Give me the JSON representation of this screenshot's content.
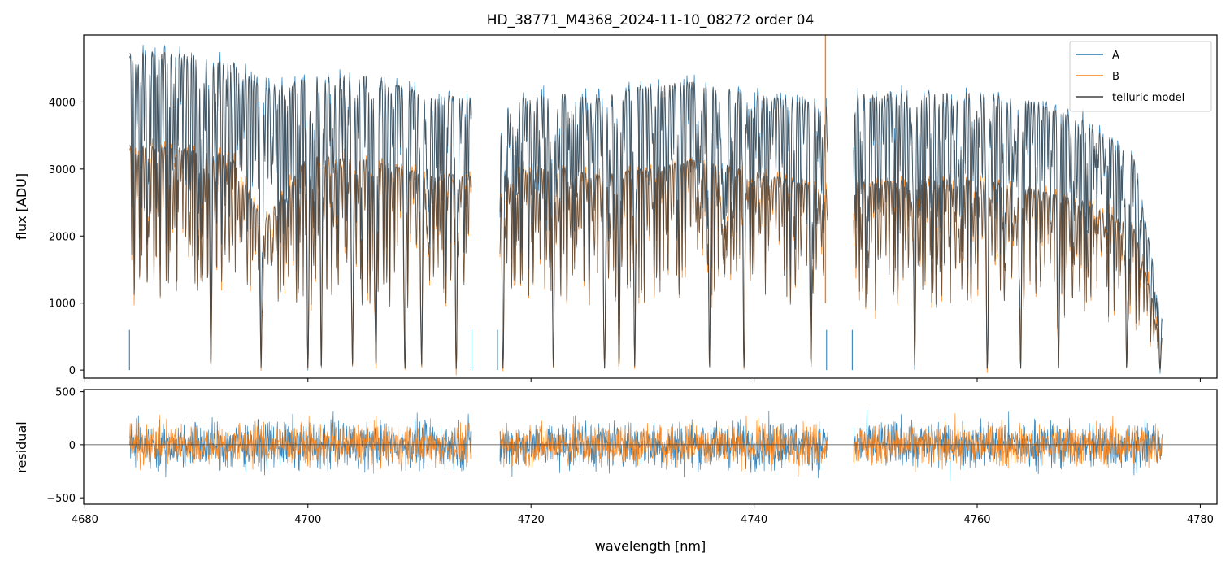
{
  "chart_data": [
    {
      "type": "line",
      "title": "HD_38771_M4368_2024-11-10_08272  order 04",
      "xlabel": "",
      "ylabel": "flux [ADU]",
      "xlim": [
        4679.9,
        4781.5
      ],
      "ylim": [
        -120,
        5000
      ],
      "yticks": [
        0,
        1000,
        2000,
        3000,
        4000
      ],
      "xticks": [
        4680,
        4700,
        4720,
        4740,
        4760,
        4780
      ],
      "xtick_labels_shown": false,
      "grid": false,
      "legend": "top-right",
      "gaps": [
        [
          4714.6,
          4717.2
        ],
        [
          4746.6,
          4748.9
        ]
      ],
      "series": [
        {
          "name": "A",
          "color": "#1f77b4",
          "continuum": [
            [
              4684.0,
              4720
            ],
            [
              4686,
              4750
            ],
            [
              4690,
              4700
            ],
            [
              4693,
              4620
            ],
            [
              4696,
              4200
            ],
            [
              4700,
              4350
            ],
            [
              4705,
              4400
            ],
            [
              4710,
              4150
            ],
            [
              4714.5,
              4050
            ],
            [
              4717.2,
              4000
            ],
            [
              4722,
              4150
            ],
            [
              4726,
              4050
            ],
            [
              4730,
              4250
            ],
            [
              4735,
              4300
            ],
            [
              4740,
              4100
            ],
            [
              4746,
              4000
            ],
            [
              4749,
              4100
            ],
            [
              4755,
              4150
            ],
            [
              4760,
              4150
            ],
            [
              4765,
              4000
            ],
            [
              4770,
              3700
            ],
            [
              4774,
              3200
            ],
            [
              4776.6,
              800
            ]
          ]
        },
        {
          "name": "B",
          "color": "#ff7f0e",
          "continuum": [
            [
              4684.0,
              3350
            ],
            [
              4688,
              3320
            ],
            [
              4691,
              3280
            ],
            [
              4693,
              3250
            ],
            [
              4696,
              2200
            ],
            [
              4700,
              3200
            ],
            [
              4705,
              3150
            ],
            [
              4710,
              2950
            ],
            [
              4714.5,
              2900
            ],
            [
              4717.2,
              2950
            ],
            [
              4722,
              3050
            ],
            [
              4726,
              2900
            ],
            [
              4730,
              3000
            ],
            [
              4735,
              3150
            ],
            [
              4740,
              2950
            ],
            [
              4746,
              2750
            ],
            [
              4749,
              2800
            ],
            [
              4755,
              2850
            ],
            [
              4760,
              2850
            ],
            [
              4765,
              2700
            ],
            [
              4770,
              2500
            ],
            [
              4774,
              2150
            ],
            [
              4776.6,
              500
            ]
          ]
        },
        {
          "name": "telluric model",
          "color": "#404040"
        }
      ],
      "deep_lines": [
        4691.3,
        4695.8,
        4700.0,
        4701.2,
        4704.0,
        4706.1,
        4708.7,
        4710.2,
        4713.3,
        4717.5,
        4722.0,
        4726.6,
        4727.9,
        4729.3,
        4736.0,
        4739.1,
        4745.1,
        4754.4,
        4760.9,
        4763.9,
        4767.3,
        4773.4,
        4776.4
      ]
    },
    {
      "type": "line",
      "xlabel": "wavelength [nm]",
      "ylabel": "residual",
      "xlim": [
        4679.9,
        4781.5
      ],
      "ylim": [
        -560,
        520
      ],
      "yticks": [
        -500,
        0,
        500
      ],
      "xticks": [
        4680,
        4700,
        4720,
        4740,
        4760,
        4780
      ],
      "zero_line": 0,
      "grid": false,
      "series": [
        {
          "name": "A",
          "color": "#1f77b4",
          "scatter": 210
        },
        {
          "name": "B",
          "color": "#ff7f0e",
          "scatter": 190
        }
      ]
    }
  ],
  "legend": {
    "items": [
      "A",
      "B",
      "telluric model"
    ]
  }
}
